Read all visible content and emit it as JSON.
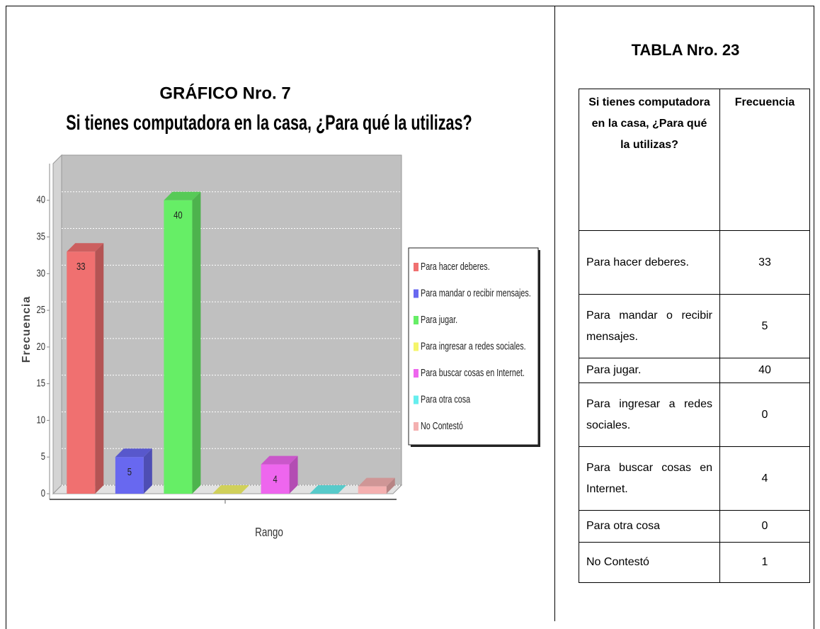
{
  "chart_data": {
    "type": "bar",
    "title": "GRÁFICO Nro. 7",
    "subtitle": "Si tienes computadora en la casa, ¿Para qué la utilizas?",
    "categories": [
      "Para hacer deberes.",
      "Para mandar o recibir mensajes.",
      "Para jugar.",
      "Para ingresar a redes sociales.",
      "Para buscar cosas en Internet.",
      "Para otra cosa",
      "No Contestó"
    ],
    "values": [
      33,
      5,
      40,
      0,
      4,
      0,
      1
    ],
    "colors": [
      "#f07070",
      "#6868f0",
      "#66ee66",
      "#f5f56a",
      "#ee66ee",
      "#66eeee",
      "#f4b0b0"
    ],
    "ylim": [
      0,
      45
    ],
    "yticks": [
      0,
      5,
      10,
      15,
      20,
      25,
      30,
      35,
      40
    ],
    "xlabel": "Rango",
    "ylabel": "Frecuencia",
    "grid": true,
    "legend": "right"
  },
  "table": {
    "title": "TABLA Nro. 23",
    "header": [
      "Si tienes computadora en la casa, ¿Para qué la utilizas?",
      "Frecuencia"
    ],
    "rows": [
      [
        "Para hacer deberes.",
        33
      ],
      [
        "Para mandar o recibir mensajes.",
        5
      ],
      [
        "Para jugar.",
        40
      ],
      [
        "Para ingresar a redes sociales.",
        0
      ],
      [
        "Para buscar cosas en Internet.",
        4
      ],
      [
        "Para otra cosa",
        0
      ],
      [
        "No Contestó",
        1
      ]
    ]
  }
}
